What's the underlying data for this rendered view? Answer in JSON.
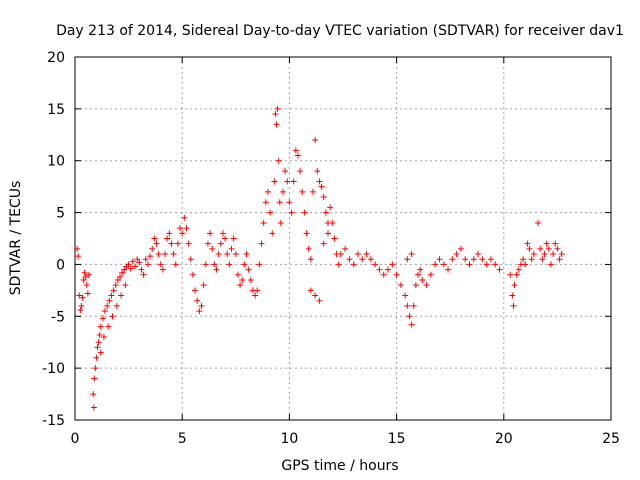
{
  "chart_data": {
    "type": "scatter",
    "title": "Day 213 of 2014, Sidereal Day-to-day VTEC variation (SDTVAR) for receiver dav1",
    "xlabel": "GPS time / hours",
    "ylabel": "SDTVAR / TECUs",
    "xlim": [
      0,
      25
    ],
    "ylim": [
      -15,
      20
    ],
    "xticks": [
      0,
      5,
      10,
      15,
      20,
      25
    ],
    "yticks": [
      -15,
      -10,
      -5,
      0,
      5,
      10,
      15,
      20
    ],
    "grid": true,
    "marker": "+",
    "color": "#ff0000",
    "series": [
      {
        "name": "dav1",
        "points": [
          [
            0.1,
            1.5
          ],
          [
            0.15,
            0.8
          ],
          [
            0.2,
            -3.0
          ],
          [
            0.25,
            -4.4
          ],
          [
            0.3,
            -4.0
          ],
          [
            0.35,
            -3.2
          ],
          [
            0.4,
            -1.5
          ],
          [
            0.45,
            -0.8
          ],
          [
            0.5,
            -1.2
          ],
          [
            0.55,
            -2.0
          ],
          [
            0.6,
            -2.8
          ],
          [
            0.65,
            -1.0
          ],
          [
            0.85,
            -12.5
          ],
          [
            0.88,
            -13.8
          ],
          [
            0.9,
            -11.0
          ],
          [
            0.95,
            -10.0
          ],
          [
            1.0,
            -9.0
          ],
          [
            1.05,
            -8.0
          ],
          [
            1.1,
            -7.5
          ],
          [
            1.15,
            -6.8
          ],
          [
            1.2,
            -6.0
          ],
          [
            1.3,
            -5.2
          ],
          [
            1.4,
            -4.5
          ],
          [
            1.5,
            -4.0
          ],
          [
            1.6,
            -3.5
          ],
          [
            1.7,
            -3.0
          ],
          [
            1.8,
            -2.5
          ],
          [
            1.9,
            -2.0
          ],
          [
            2.0,
            -1.5
          ],
          [
            2.1,
            -1.2
          ],
          [
            2.2,
            -0.8
          ],
          [
            2.3,
            -0.5
          ],
          [
            2.4,
            -0.2
          ],
          [
            1.2,
            -8.5
          ],
          [
            1.35,
            -7.0
          ],
          [
            1.55,
            -6.0
          ],
          [
            1.75,
            -5.0
          ],
          [
            1.95,
            -4.0
          ],
          [
            2.15,
            -3.0
          ],
          [
            2.35,
            -2.0
          ],
          [
            2.5,
            0.0
          ],
          [
            2.6,
            -0.4
          ],
          [
            2.7,
            0.3
          ],
          [
            2.8,
            -0.2
          ],
          [
            2.9,
            0.5
          ],
          [
            3.0,
            0.2
          ],
          [
            3.1,
            -0.5
          ],
          [
            3.2,
            -1.0
          ],
          [
            3.3,
            0.5
          ],
          [
            3.4,
            0.0
          ],
          [
            3.5,
            0.8
          ],
          [
            3.6,
            1.5
          ],
          [
            3.7,
            2.5
          ],
          [
            3.8,
            2.0
          ],
          [
            3.9,
            1.0
          ],
          [
            4.0,
            0.0
          ],
          [
            4.1,
            -0.5
          ],
          [
            4.2,
            1.0
          ],
          [
            4.3,
            2.5
          ],
          [
            4.4,
            3.0
          ],
          [
            4.5,
            2.0
          ],
          [
            4.6,
            1.0
          ],
          [
            4.7,
            0.0
          ],
          [
            4.8,
            2.0
          ],
          [
            4.9,
            3.5
          ],
          [
            5.0,
            3.0
          ],
          [
            5.1,
            4.5
          ],
          [
            5.2,
            3.5
          ],
          [
            5.3,
            2.0
          ],
          [
            5.4,
            0.5
          ],
          [
            5.5,
            -1.0
          ],
          [
            5.6,
            -2.5
          ],
          [
            5.7,
            -3.5
          ],
          [
            5.8,
            -4.5
          ],
          [
            5.9,
            -4.0
          ],
          [
            6.0,
            -2.0
          ],
          [
            6.1,
            0.0
          ],
          [
            6.2,
            2.0
          ],
          [
            6.3,
            3.0
          ],
          [
            6.4,
            1.5
          ],
          [
            6.5,
            0.0
          ],
          [
            6.6,
            -0.5
          ],
          [
            6.7,
            1.0
          ],
          [
            6.8,
            2.0
          ],
          [
            6.9,
            3.0
          ],
          [
            7.0,
            2.5
          ],
          [
            7.1,
            1.0
          ],
          [
            7.2,
            0.0
          ],
          [
            7.3,
            1.5
          ],
          [
            7.4,
            2.5
          ],
          [
            7.5,
            1.0
          ],
          [
            7.6,
            -1.0
          ],
          [
            7.7,
            -2.0
          ],
          [
            7.8,
            -1.5
          ],
          [
            7.9,
            0.0
          ],
          [
            8.0,
            1.0
          ],
          [
            8.1,
            -0.5
          ],
          [
            8.2,
            -1.5
          ],
          [
            8.3,
            -2.5
          ],
          [
            8.4,
            -3.0
          ],
          [
            8.5,
            -2.5
          ],
          [
            8.6,
            0.0
          ],
          [
            8.7,
            2.0
          ],
          [
            8.8,
            4.0
          ],
          [
            8.9,
            6.0
          ],
          [
            9.0,
            7.0
          ],
          [
            9.1,
            5.0
          ],
          [
            9.2,
            3.0
          ],
          [
            9.3,
            8.0
          ],
          [
            9.35,
            14.5
          ],
          [
            9.4,
            13.5
          ],
          [
            9.45,
            15.0
          ],
          [
            9.5,
            10.0
          ],
          [
            9.55,
            6.0
          ],
          [
            9.6,
            4.0
          ],
          [
            9.7,
            7.0
          ],
          [
            9.8,
            9.0
          ],
          [
            9.9,
            8.0
          ],
          [
            10.0,
            6.0
          ],
          [
            10.1,
            5.0
          ],
          [
            10.2,
            8.0
          ],
          [
            10.3,
            11.0
          ],
          [
            10.4,
            10.5
          ],
          [
            10.5,
            9.0
          ],
          [
            10.6,
            7.0
          ],
          [
            10.7,
            5.0
          ],
          [
            10.8,
            3.0
          ],
          [
            10.9,
            1.5
          ],
          [
            11.0,
            0.5
          ],
          [
            11.1,
            7.0
          ],
          [
            11.2,
            12.0
          ],
          [
            11.3,
            9.0
          ],
          [
            11.4,
            8.0
          ],
          [
            11.5,
            7.5
          ],
          [
            11.6,
            6.5
          ],
          [
            11.7,
            5.0
          ],
          [
            11.8,
            4.0
          ],
          [
            11.9,
            5.5
          ],
          [
            12.0,
            4.0
          ],
          [
            12.1,
            2.5
          ],
          [
            12.2,
            1.0
          ],
          [
            12.3,
            0.0
          ],
          [
            11.0,
            -2.5
          ],
          [
            11.2,
            -3.0
          ],
          [
            11.4,
            -3.5
          ],
          [
            11.6,
            2.0
          ],
          [
            11.8,
            3.0
          ],
          [
            12.4,
            1.0
          ],
          [
            12.6,
            1.5
          ],
          [
            12.8,
            0.5
          ],
          [
            13.0,
            0.0
          ],
          [
            13.2,
            1.0
          ],
          [
            13.4,
            0.5
          ],
          [
            13.6,
            1.0
          ],
          [
            13.8,
            0.5
          ],
          [
            14.0,
            0.0
          ],
          [
            14.2,
            -0.5
          ],
          [
            14.4,
            -1.0
          ],
          [
            14.6,
            -0.5
          ],
          [
            14.8,
            0.0
          ],
          [
            15.0,
            -1.0
          ],
          [
            15.2,
            -2.0
          ],
          [
            15.4,
            -3.0
          ],
          [
            15.5,
            -4.0
          ],
          [
            15.6,
            -5.0
          ],
          [
            15.7,
            -5.8
          ],
          [
            15.8,
            -4.0
          ],
          [
            15.9,
            -2.0
          ],
          [
            16.0,
            -1.0
          ],
          [
            16.1,
            -0.5
          ],
          [
            15.5,
            0.5
          ],
          [
            15.7,
            1.0
          ],
          [
            16.2,
            -1.5
          ],
          [
            16.4,
            -2.0
          ],
          [
            16.6,
            -1.0
          ],
          [
            16.8,
            0.0
          ],
          [
            17.0,
            0.5
          ],
          [
            17.2,
            0.0
          ],
          [
            17.4,
            -0.5
          ],
          [
            17.6,
            0.5
          ],
          [
            17.8,
            1.0
          ],
          [
            18.0,
            1.5
          ],
          [
            18.2,
            0.5
          ],
          [
            18.4,
            0.0
          ],
          [
            18.6,
            0.5
          ],
          [
            18.8,
            1.0
          ],
          [
            19.0,
            0.5
          ],
          [
            19.2,
            0.0
          ],
          [
            19.4,
            0.5
          ],
          [
            19.6,
            0.0
          ],
          [
            19.8,
            -0.5
          ],
          [
            20.3,
            -1.0
          ],
          [
            20.4,
            -3.0
          ],
          [
            20.45,
            -4.0
          ],
          [
            20.5,
            -2.0
          ],
          [
            20.6,
            -1.0
          ],
          [
            20.7,
            -0.5
          ],
          [
            20.8,
            0.0
          ],
          [
            20.9,
            0.5
          ],
          [
            21.0,
            0.0
          ],
          [
            21.1,
            2.0
          ],
          [
            21.2,
            1.5
          ],
          [
            21.3,
            0.5
          ],
          [
            21.4,
            1.0
          ],
          [
            21.6,
            4.0
          ],
          [
            21.7,
            1.5
          ],
          [
            21.8,
            0.5
          ],
          [
            21.9,
            1.0
          ],
          [
            22.0,
            2.0
          ],
          [
            22.1,
            1.5
          ],
          [
            22.2,
            0.0
          ],
          [
            22.3,
            1.0
          ],
          [
            22.4,
            2.0
          ],
          [
            22.5,
            1.5
          ],
          [
            22.6,
            0.5
          ],
          [
            22.7,
            1.0
          ]
        ]
      }
    ]
  }
}
